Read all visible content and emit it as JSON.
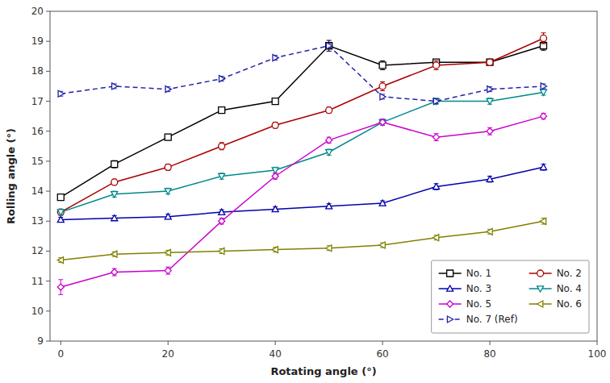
{
  "chart_data": {
    "type": "line",
    "x": [
      0,
      10,
      20,
      30,
      40,
      50,
      60,
      70,
      80,
      90
    ],
    "series": [
      {
        "name": "No. 1",
        "color": "#000000",
        "marker": "square",
        "line_style": "solid",
        "values": [
          13.8,
          14.9,
          15.8,
          16.7,
          17.0,
          18.85,
          18.2,
          18.3,
          18.3,
          18.85
        ],
        "errors": [
          0.1,
          0.12,
          0.1,
          0.1,
          0.1,
          0.18,
          0.15,
          0.1,
          0.1,
          0.15
        ]
      },
      {
        "name": "No. 2",
        "color": "#aa0000",
        "marker": "circle",
        "line_style": "solid",
        "values": [
          13.3,
          14.3,
          14.8,
          15.5,
          16.2,
          16.7,
          17.5,
          18.2,
          18.3,
          19.1
        ],
        "errors": [
          0.1,
          0.1,
          0.1,
          0.12,
          0.1,
          0.1,
          0.15,
          0.15,
          0.1,
          0.18
        ]
      },
      {
        "name": "No. 3",
        "color": "#0000aa",
        "marker": "triangle-up",
        "line_style": "solid",
        "values": [
          13.05,
          13.1,
          13.15,
          13.3,
          13.4,
          13.5,
          13.6,
          14.15,
          14.4,
          14.8
        ],
        "errors": [
          0.08,
          0.08,
          0.08,
          0.08,
          0.08,
          0.08,
          0.08,
          0.1,
          0.1,
          0.1
        ]
      },
      {
        "name": "No. 4",
        "color": "#008888",
        "marker": "triangle-down",
        "line_style": "solid",
        "values": [
          13.3,
          13.9,
          14.0,
          14.5,
          14.7,
          15.3,
          16.3,
          17.0,
          17.0,
          17.3
        ],
        "errors": [
          0.1,
          0.1,
          0.1,
          0.1,
          0.1,
          0.1,
          0.1,
          0.1,
          0.1,
          0.1
        ]
      },
      {
        "name": "No. 5",
        "color": "#cc00cc",
        "marker": "diamond",
        "line_style": "solid",
        "values": [
          10.8,
          11.3,
          11.35,
          13.0,
          14.5,
          15.7,
          16.3,
          15.8,
          16.0,
          16.5
        ],
        "errors": [
          0.25,
          0.12,
          0.12,
          0.1,
          0.1,
          0.1,
          0.1,
          0.12,
          0.12,
          0.1
        ]
      },
      {
        "name": "No. 6",
        "color": "#808000",
        "marker": "triangle-left",
        "line_style": "solid",
        "values": [
          11.7,
          11.9,
          11.95,
          12.0,
          12.05,
          12.1,
          12.2,
          12.45,
          12.65,
          13.0
        ],
        "errors": [
          0.08,
          0.08,
          0.08,
          0.08,
          0.08,
          0.08,
          0.08,
          0.08,
          0.08,
          0.1
        ]
      },
      {
        "name": "No. 7 (Ref)",
        "color": "#2222aa",
        "marker": "triangle-right",
        "line_style": "dashed",
        "values": [
          17.25,
          17.5,
          17.4,
          17.75,
          18.45,
          18.85,
          17.15,
          17.0,
          17.4,
          17.5
        ],
        "errors": [
          0.08,
          0.08,
          0.08,
          0.08,
          0.08,
          0.08,
          0.08,
          0.08,
          0.08,
          0.08
        ]
      }
    ],
    "xlabel": "Rotating angle (°)",
    "ylabel": "Rolling angle (°)",
    "xlim": [
      -2,
      100
    ],
    "ylim": [
      9,
      20
    ],
    "xticks": [
      0,
      20,
      40,
      60,
      80,
      100
    ],
    "yticks": [
      9,
      10,
      11,
      12,
      13,
      14,
      15,
      16,
      17,
      18,
      19,
      20
    ],
    "grid": false,
    "legend": "lower right"
  }
}
